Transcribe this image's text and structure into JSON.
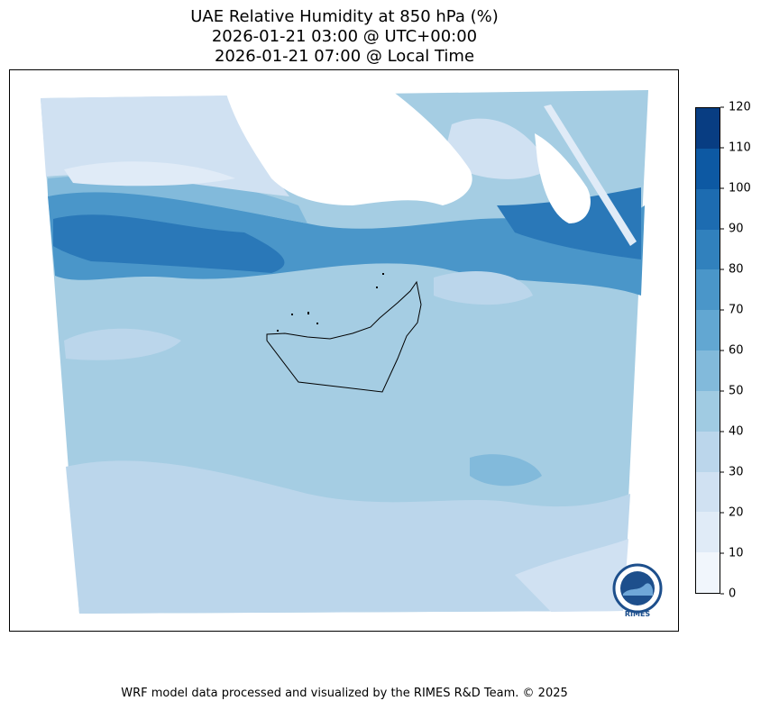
{
  "title": {
    "line1": "UAE Relative Humidity at 850 hPa (%)",
    "line2": "2026-01-21 03:00 @ UTC+00:00",
    "line3": "2026-01-21 07:00 @ Local Time"
  },
  "colorbar": {
    "levels": [
      0,
      10,
      20,
      30,
      40,
      50,
      60,
      70,
      80,
      90,
      100,
      110,
      120
    ],
    "tick_labels": [
      "0",
      "10",
      "20",
      "30",
      "40",
      "50",
      "60",
      "70",
      "80",
      "90",
      "100",
      "110",
      "120"
    ],
    "colors": [
      "#f1f6fc",
      "#e0ebf7",
      "#d0e1f2",
      "#bbd6eb",
      "#a0cbe2",
      "#82badb",
      "#62a7d2",
      "#4a96c9",
      "#3181bd",
      "#1d6cb1",
      "#0d59a3",
      "#083d82"
    ]
  },
  "logo": {
    "text": "RIMES"
  },
  "footer": {
    "text": "WRF model data processed and visualized by the RIMES R&D Team. © 2025"
  }
}
